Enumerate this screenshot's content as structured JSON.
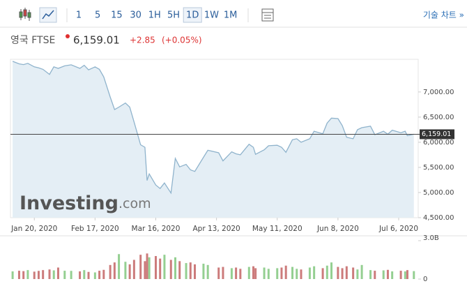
{
  "header": {
    "intervals": [
      {
        "label": "1",
        "active": false
      },
      {
        "label": "5",
        "active": false
      },
      {
        "label": "15",
        "active": false
      },
      {
        "label": "30",
        "active": false
      },
      {
        "label": "1H",
        "active": false
      },
      {
        "label": "5H",
        "active": false
      },
      {
        "label": "1D",
        "active": true
      },
      {
        "label": "1W",
        "active": false
      },
      {
        "label": "1M",
        "active": false
      }
    ],
    "tech_chart": "기술 차트 »",
    "instrument": "영국 FTSE",
    "price": "6,159.01",
    "change": "+2.85",
    "change_pct": "(+0.05%)"
  },
  "chart_data": [
    {
      "type": "area",
      "color": "#8fb3cc",
      "fill": "#e4eef5",
      "watermark": {
        "brand": "Investing",
        "suffix": ".com"
      },
      "last_price": {
        "value": 6159.01,
        "label": "6,159.01"
      },
      "x": [
        "2020-01-10",
        "2020-01-13",
        "2020-01-15",
        "2020-01-17",
        "2020-01-20",
        "2020-01-22",
        "2020-01-24",
        "2020-01-27",
        "2020-01-29",
        "2020-01-31",
        "2020-02-03",
        "2020-02-06",
        "2020-02-10",
        "2020-02-12",
        "2020-02-14",
        "2020-02-17",
        "2020-02-19",
        "2020-02-21",
        "2020-02-24",
        "2020-02-26",
        "2020-02-28",
        "2020-03-02",
        "2020-03-04",
        "2020-03-06",
        "2020-03-09",
        "2020-03-11",
        "2020-03-12",
        "2020-03-13",
        "2020-03-16",
        "2020-03-18",
        "2020-03-20",
        "2020-03-23",
        "2020-03-25",
        "2020-03-27",
        "2020-03-30",
        "2020-04-01",
        "2020-04-03",
        "2020-04-07",
        "2020-04-09",
        "2020-04-14",
        "2020-04-16",
        "2020-04-20",
        "2020-04-22",
        "2020-04-24",
        "2020-04-28",
        "2020-04-30",
        "2020-05-01",
        "2020-05-05",
        "2020-05-07",
        "2020-05-11",
        "2020-05-13",
        "2020-05-15",
        "2020-05-18",
        "2020-05-20",
        "2020-05-22",
        "2020-05-26",
        "2020-05-28",
        "2020-06-01",
        "2020-06-03",
        "2020-06-05",
        "2020-06-08",
        "2020-06-10",
        "2020-06-12",
        "2020-06-15",
        "2020-06-17",
        "2020-06-19",
        "2020-06-23",
        "2020-06-25",
        "2020-06-29",
        "2020-07-01",
        "2020-07-03",
        "2020-07-07",
        "2020-07-09",
        "2020-07-10",
        "2020-07-13"
      ],
      "values": [
        7610,
        7560,
        7545,
        7570,
        7500,
        7480,
        7450,
        7350,
        7500,
        7470,
        7520,
        7540,
        7470,
        7530,
        7440,
        7500,
        7450,
        7300,
        6900,
        6650,
        6700,
        6780,
        6700,
        6400,
        5950,
        5900,
        5240,
        5370,
        5150,
        5080,
        5190,
        4990,
        5680,
        5510,
        5560,
        5450,
        5420,
        5700,
        5840,
        5790,
        5630,
        5810,
        5770,
        5750,
        5960,
        5900,
        5760,
        5850,
        5930,
        5940,
        5900,
        5800,
        6050,
        6070,
        6000,
        6070,
        6220,
        6170,
        6380,
        6480,
        6470,
        6330,
        6100,
        6070,
        6250,
        6290,
        6320,
        6150,
        6220,
        6160,
        6240,
        6190,
        6220,
        6130,
        6159.01
      ],
      "xlim": [
        "2020-01-09",
        "2020-07-15"
      ],
      "xticks": [
        {
          "value": "2020-01-20",
          "label": "Jan 20, 2020"
        },
        {
          "value": "2020-02-17",
          "label": "Feb 17, 2020"
        },
        {
          "value": "2020-03-16",
          "label": "Mar 16, 2020"
        },
        {
          "value": "2020-04-13",
          "label": "Apr 13, 2020"
        },
        {
          "value": "2020-05-11",
          "label": "May 11, 2020"
        },
        {
          "value": "2020-06-08",
          "label": "Jun 8, 2020"
        },
        {
          "value": "2020-07-06",
          "label": "Jul 6, 2020"
        }
      ],
      "ylim": [
        4500,
        7650
      ],
      "yticks": [
        {
          "value": 4500,
          "label": "4,500.00"
        },
        {
          "value": 5000,
          "label": "5,000.00"
        },
        {
          "value": 5500,
          "label": "5,500.00"
        },
        {
          "value": 6000,
          "label": "6,000.00"
        },
        {
          "value": 6500,
          "label": "6,500.00"
        },
        {
          "value": 7000,
          "label": "7,000.00"
        }
      ],
      "grid": false
    },
    {
      "type": "bar",
      "colors": {
        "up": "#94cf91",
        "down": "#cc7b7b"
      },
      "x": [
        "2020-01-10",
        "2020-01-13",
        "2020-01-15",
        "2020-01-17",
        "2020-01-20",
        "2020-01-22",
        "2020-01-24",
        "2020-01-27",
        "2020-01-29",
        "2020-01-31",
        "2020-02-03",
        "2020-02-06",
        "2020-02-10",
        "2020-02-12",
        "2020-02-14",
        "2020-02-17",
        "2020-02-19",
        "2020-02-21",
        "2020-02-24",
        "2020-02-26",
        "2020-02-28",
        "2020-03-02",
        "2020-03-04",
        "2020-03-06",
        "2020-03-09",
        "2020-03-11",
        "2020-03-12",
        "2020-03-13",
        "2020-03-16",
        "2020-03-18",
        "2020-03-20",
        "2020-03-23",
        "2020-03-25",
        "2020-03-27",
        "2020-03-30",
        "2020-04-01",
        "2020-04-03",
        "2020-04-07",
        "2020-04-09",
        "2020-04-14",
        "2020-04-16",
        "2020-04-20",
        "2020-04-22",
        "2020-04-24",
        "2020-04-28",
        "2020-04-30",
        "2020-05-01",
        "2020-05-05",
        "2020-05-07",
        "2020-05-11",
        "2020-05-13",
        "2020-05-15",
        "2020-05-18",
        "2020-05-20",
        "2020-05-22",
        "2020-05-26",
        "2020-05-28",
        "2020-06-01",
        "2020-06-03",
        "2020-06-05",
        "2020-06-08",
        "2020-06-10",
        "2020-06-12",
        "2020-06-15",
        "2020-06-17",
        "2020-06-19",
        "2020-06-23",
        "2020-06-25",
        "2020-06-29",
        "2020-07-01",
        "2020-07-03",
        "2020-07-07",
        "2020-07-09",
        "2020-07-10",
        "2020-07-13"
      ],
      "values": [
        600000000,
        650000000,
        620000000,
        700000000,
        580000000,
        640000000,
        700000000,
        750000000,
        680000000,
        900000000,
        650000000,
        640000000,
        600000000,
        700000000,
        560000000,
        520000000,
        650000000,
        720000000,
        1100000000,
        1300000000,
        1950000000,
        1350000000,
        1150000000,
        1500000000,
        1900000000,
        1400000000,
        2000000000,
        1700000000,
        1800000000,
        1600000000,
        1900000000,
        1500000000,
        1700000000,
        1400000000,
        1250000000,
        1300000000,
        1150000000,
        1200000000,
        1100000000,
        900000000,
        950000000,
        850000000,
        900000000,
        800000000,
        950000000,
        1000000000,
        850000000,
        900000000,
        800000000,
        850000000,
        900000000,
        1050000000,
        950000000,
        800000000,
        750000000,
        900000000,
        1000000000,
        850000000,
        1050000000,
        1300000000,
        950000000,
        850000000,
        1000000000,
        900000000,
        750000000,
        1100000000,
        700000000,
        650000000,
        680000000,
        720000000,
        600000000,
        650000000,
        600000000,
        700000000,
        620000000
      ],
      "xlim": [
        "2020-01-09",
        "2020-07-15"
      ],
      "ylim": [
        0,
        3000000000
      ],
      "yticks": [
        0,
        {
          "value": 3000000000,
          "label": "3.0B"
        }
      ]
    }
  ]
}
